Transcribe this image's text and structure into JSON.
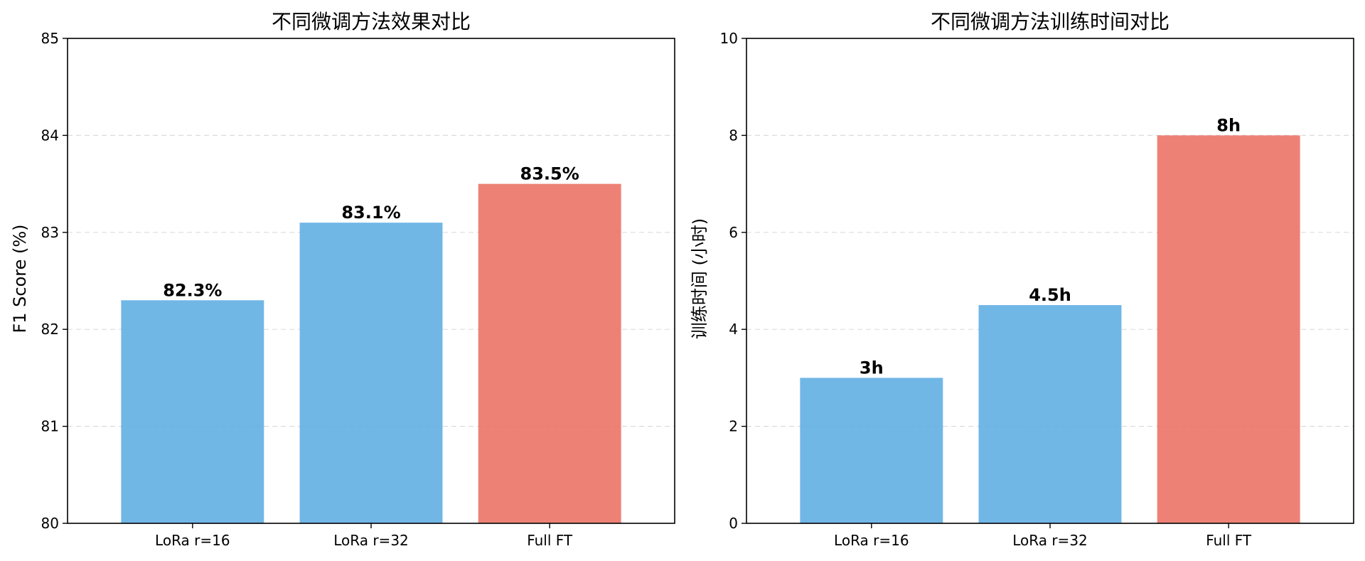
{
  "chart_data": [
    {
      "type": "bar",
      "title": "不同微调方法效果对比",
      "xlabel": "",
      "ylabel": "F1 Score (%)",
      "categories": [
        "LoRa r=16",
        "LoRa r=32",
        "Full FT"
      ],
      "values": [
        82.3,
        83.1,
        83.5
      ],
      "data_labels": [
        "82.3%",
        "83.1%",
        "83.5%"
      ],
      "bar_colors": [
        "#5dade2",
        "#5dade2",
        "#ec7063"
      ],
      "ylim": [
        80,
        85
      ],
      "yticks": [
        80,
        81,
        82,
        83,
        84,
        85
      ],
      "ytick_labels": [
        "80",
        "81",
        "82",
        "83",
        "84",
        "85"
      ],
      "grid": true
    },
    {
      "type": "bar",
      "title": "不同微调方法训练时间对比",
      "xlabel": "",
      "ylabel": "训练时间 (小时)",
      "categories": [
        "LoRa r=16",
        "LoRa r=32",
        "Full FT"
      ],
      "values": [
        3,
        4.5,
        8
      ],
      "data_labels": [
        "3h",
        "4.5h",
        "8h"
      ],
      "bar_colors": [
        "#5dade2",
        "#5dade2",
        "#ec7063"
      ],
      "ylim": [
        0,
        10
      ],
      "yticks": [
        0,
        2,
        4,
        6,
        8,
        10
      ],
      "ytick_labels": [
        "0",
        "2",
        "4",
        "6",
        "8",
        "10"
      ],
      "grid": true
    }
  ]
}
